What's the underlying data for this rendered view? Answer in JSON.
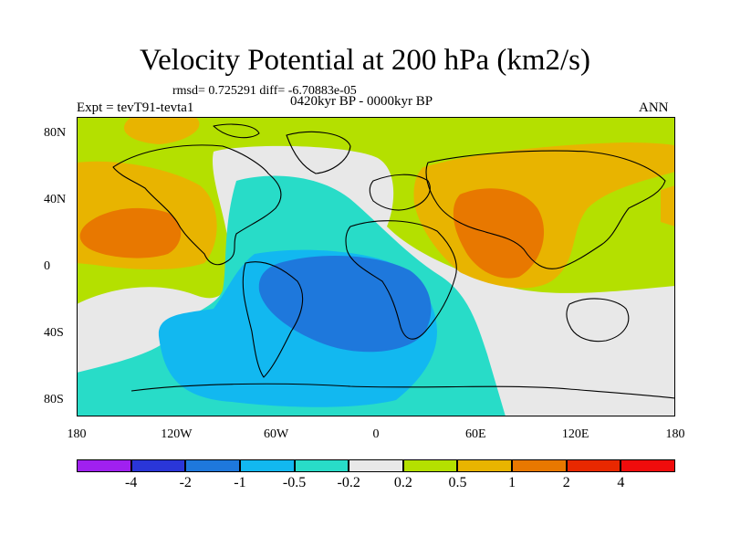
{
  "title": "Velocity Potential at 200 hPa (km2/s)",
  "stats": "rmsd= 0.725291 diff= -6.70883e-05",
  "expt": "Expt = tevT91-tevta1",
  "period": "0420kyr BP - 0000kyr BP",
  "season": "ANN",
  "x_ticks": [
    "180",
    "120W",
    "60W",
    "0",
    "60E",
    "120E",
    "180"
  ],
  "y_ticks": [
    "80N",
    "40N",
    "0",
    "40S",
    "80S"
  ],
  "colorbar": {
    "labels": [
      "-4",
      "-2",
      "-1",
      "-0.5",
      "-0.2",
      "0.2",
      "0.5",
      "1",
      "2",
      "4"
    ],
    "colors": [
      "#a020f0",
      "#2a36d8",
      "#1e78dc",
      "#12b8f0",
      "#28dcc8",
      "#e8e8e8",
      "#b4e000",
      "#e8b400",
      "#e87800",
      "#e82800",
      "#f00c0c"
    ]
  },
  "colors": {
    "land_outline": "#000000",
    "background": "#ffffff"
  }
}
